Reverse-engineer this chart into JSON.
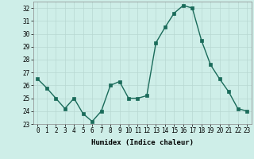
{
  "x": [
    0,
    1,
    2,
    3,
    4,
    5,
    6,
    7,
    8,
    9,
    10,
    11,
    12,
    13,
    14,
    15,
    16,
    17,
    18,
    19,
    20,
    21,
    22,
    23
  ],
  "y": [
    26.5,
    25.8,
    25.0,
    24.2,
    25.0,
    23.8,
    23.2,
    24.0,
    26.0,
    26.3,
    25.0,
    25.0,
    25.2,
    29.3,
    30.5,
    31.6,
    32.2,
    32.0,
    29.5,
    27.6,
    26.5,
    25.5,
    24.2,
    24.0
  ],
  "line_color": "#1a6b5a",
  "marker": "s",
  "marker_size": 2.2,
  "bg_color": "#ceeee8",
  "grid_color": "#b8d8d2",
  "xlabel": "Humidex (Indice chaleur)",
  "xlim": [
    -0.5,
    23.5
  ],
  "ylim": [
    23,
    32.5
  ],
  "yticks": [
    23,
    24,
    25,
    26,
    27,
    28,
    29,
    30,
    31,
    32
  ],
  "xticks": [
    0,
    1,
    2,
    3,
    4,
    5,
    6,
    7,
    8,
    9,
    10,
    11,
    12,
    13,
    14,
    15,
    16,
    17,
    18,
    19,
    20,
    21,
    22,
    23
  ],
  "tick_fontsize": 5.5,
  "xlabel_fontsize": 6.5,
  "line_width": 1.0
}
